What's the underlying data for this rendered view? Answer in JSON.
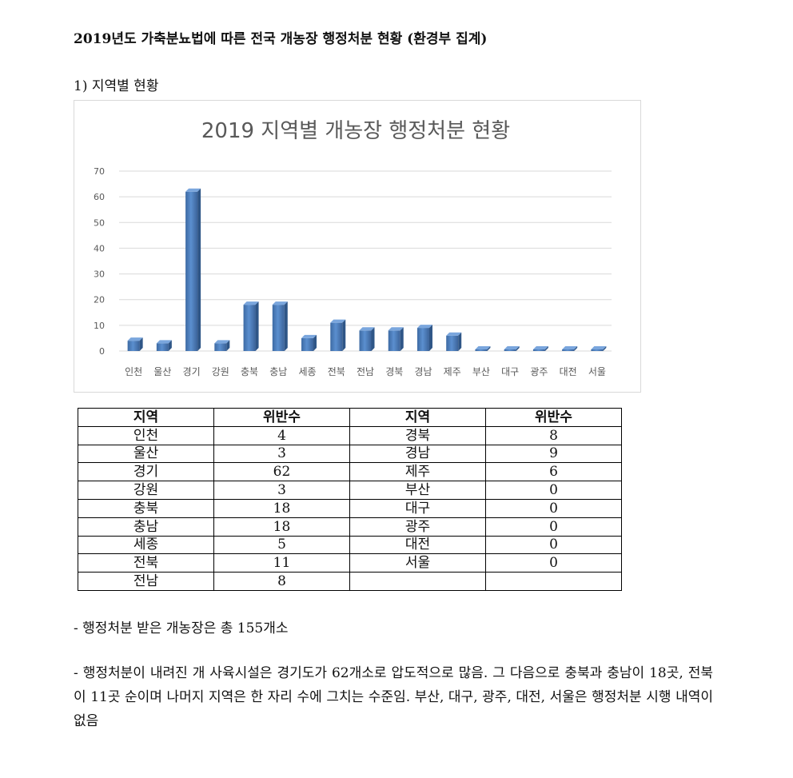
{
  "document": {
    "title": "2019년도 가축분뇨법에 따른 전국 개농장 행정처분 현황 (환경부 집계)",
    "section_heading": "1) 지역별 현황",
    "table": {
      "headers": [
        "지역",
        "위반수",
        "지역",
        "위반수"
      ],
      "rows": [
        [
          "인천",
          "4",
          "경북",
          "8"
        ],
        [
          "울산",
          "3",
          "경남",
          "9"
        ],
        [
          "경기",
          "62",
          "제주",
          "6"
        ],
        [
          "강원",
          "3",
          "부산",
          "0"
        ],
        [
          "충북",
          "18",
          "대구",
          "0"
        ],
        [
          "충남",
          "18",
          "광주",
          "0"
        ],
        [
          "세종",
          "5",
          "대전",
          "0"
        ],
        [
          "전북",
          "11",
          "서울",
          "0"
        ],
        [
          "전남",
          "8",
          "",
          ""
        ]
      ]
    },
    "note1": "- 행정처분 받은 개농장은 총 155개소",
    "note2": "- 행정처분이 내려진 개 사육시설은 경기도가 62개소로 압도적으로 많음. 그 다음으로 충북과 충남이 18곳, 전북이 11곳 순이며 나머지 지역은 한 자리 수에 그치는 수준임. 부산, 대구, 광주, 대전, 서울은 행정처분 시행 내역이 없음"
  },
  "chart_data": {
    "type": "bar",
    "title": "2019 지역별 개농장 행정처분 현황",
    "categories": [
      "인천",
      "울산",
      "경기",
      "강원",
      "충북",
      "충남",
      "세종",
      "전북",
      "전남",
      "경북",
      "경남",
      "제주",
      "부산",
      "대구",
      "광주",
      "대전",
      "서울"
    ],
    "values": [
      4,
      3,
      62,
      3,
      18,
      18,
      5,
      11,
      8,
      8,
      9,
      6,
      0,
      0,
      0,
      0,
      0
    ],
    "ylim": [
      0,
      70
    ],
    "yticks": [
      0,
      10,
      20,
      30,
      40,
      50,
      60,
      70
    ],
    "grid": true,
    "bar_color": "#4a7ebb"
  }
}
